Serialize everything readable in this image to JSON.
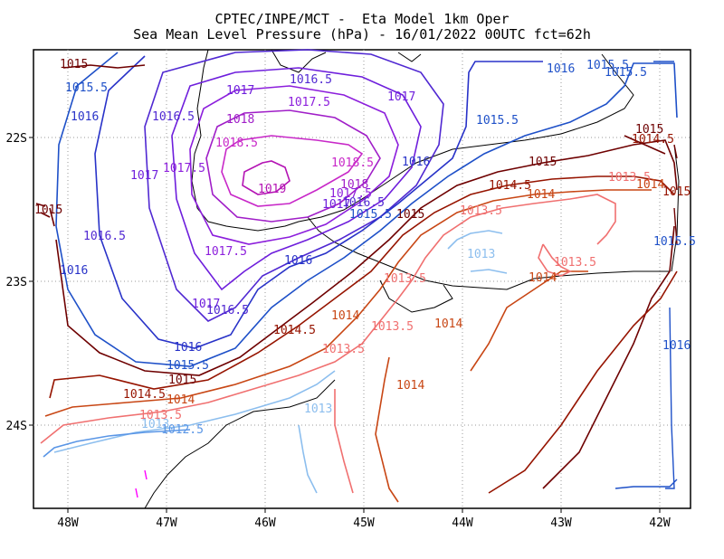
{
  "title": {
    "line1": "CPTEC/INPE/MCT -  Eta Model 1km Oper",
    "line2": "Sea Mean Level Pressure (hPa) - 16/01/2022 00UTC fct=62h"
  },
  "axes": {
    "lon_labels": [
      "48W",
      "47W",
      "46W",
      "45W",
      "44W",
      "43W",
      "42W"
    ],
    "lat_labels": [
      "22S",
      "23S",
      "24S"
    ]
  },
  "contours": [
    {
      "id": "c1019",
      "label": "1019",
      "color": "#b414b4"
    },
    {
      "id": "c10185",
      "label": "1018.5",
      "color": "#c828c8"
    },
    {
      "id": "c1018",
      "label": "1018",
      "color": "#a01ec8"
    },
    {
      "id": "c10175",
      "label": "1017.5",
      "color": "#8c1edc"
    },
    {
      "id": "c1017",
      "label": "1017",
      "color": "#6e1edc"
    },
    {
      "id": "c10165",
      "label": "1016.5",
      "color": "#5028d2"
    },
    {
      "id": "c1016",
      "label": "1016",
      "color": "#2832c8"
    },
    {
      "id": "c10155",
      "label": "1015.5",
      "color": "#1e50c8"
    },
    {
      "id": "c1015",
      "label": "1015",
      "color": "#6e0000"
    },
    {
      "id": "c10145",
      "label": "1014.5",
      "color": "#961400"
    },
    {
      "id": "c1014",
      "label": "1014",
      "color": "#c84614"
    },
    {
      "id": "c10135",
      "label": "1013.5",
      "color": "#f07070"
    },
    {
      "id": "c1013",
      "label": "1013",
      "color": "#8cbeee"
    },
    {
      "id": "c10125",
      "label": "1012.5",
      "color": "#5a96e6"
    }
  ]
}
